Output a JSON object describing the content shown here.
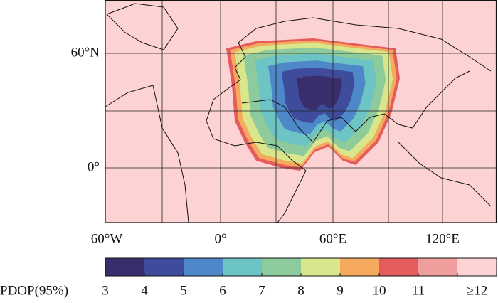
{
  "map": {
    "lat_labels": [
      "60°N",
      "0°"
    ],
    "lon_labels": [
      "60°W",
      "0°",
      "60°E",
      "120°E"
    ],
    "colorbar": {
      "label": "PDOP(95%)",
      "ticks": [
        3,
        4,
        5,
        6,
        7,
        8,
        9,
        10,
        11,
        {
          "value": 12,
          "label": "≥12"
        }
      ],
      "colors": [
        "#3a2d6b",
        "#3f4c9c",
        "#4f88c8",
        "#6cc4c4",
        "#8ecb9c",
        "#d9e68c",
        "#f6aa5e",
        "#e65b5b",
        "#f09d9d",
        "#fdd2d2"
      ]
    }
  }
}
